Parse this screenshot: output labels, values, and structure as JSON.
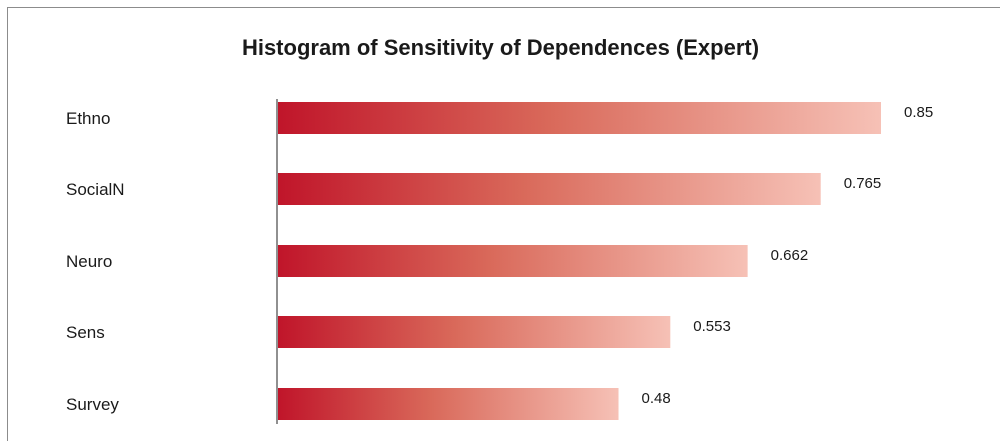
{
  "chart_data": {
    "type": "bar",
    "orientation": "horizontal",
    "title": "Histogram of Sensitivity of Dependences (Expert)",
    "categories": [
      "Ethno",
      "SocialN",
      "Neuro",
      "Sens",
      "Survey"
    ],
    "values": [
      0.85,
      0.765,
      0.662,
      0.553,
      0.48
    ],
    "value_labels": [
      "0.85",
      "0.765",
      "0.662",
      "0.553",
      "0.48"
    ],
    "xlabel": "",
    "ylabel": "",
    "xlim": [
      0,
      0.85
    ],
    "grid": false,
    "legend": "none",
    "colors": {
      "bar_start": "#c0152a",
      "bar_mid": "#d9695a",
      "bar_end": "#f6c1b6",
      "axis": "#222222",
      "text": "#1a1a1a"
    }
  }
}
